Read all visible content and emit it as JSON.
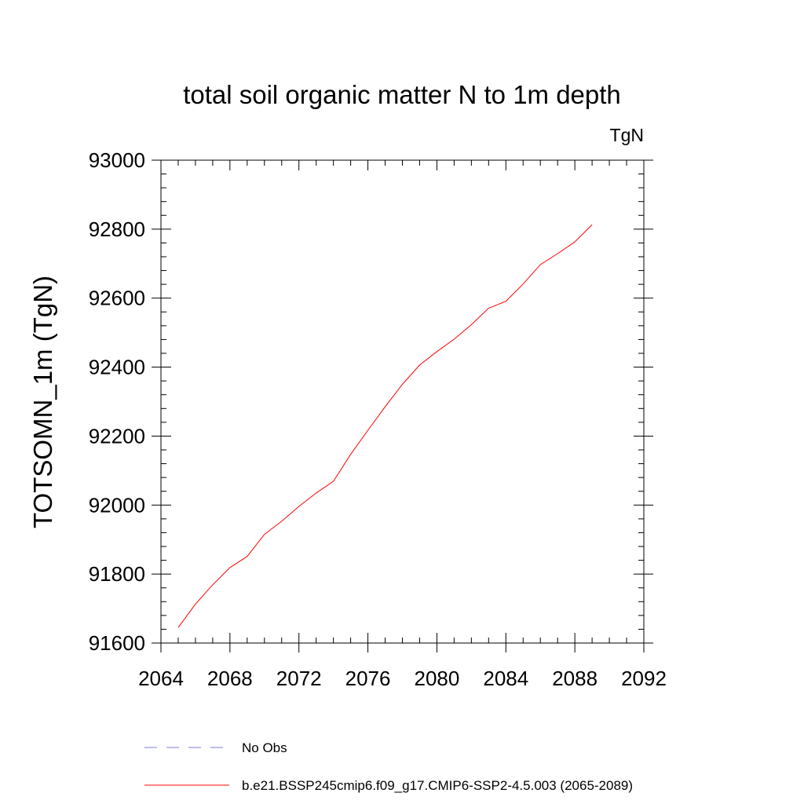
{
  "chart_data": {
    "type": "line",
    "title": "total soil organic matter N to 1m depth",
    "units": "TgN",
    "ylabel": "TOTSOMN_1m  (TgN)",
    "xlabel": "",
    "xlim": [
      2064,
      2092
    ],
    "ylim": [
      91600,
      93000
    ],
    "x_ticks": [
      "2064",
      "2068",
      "2072",
      "2076",
      "2080",
      "2084",
      "2088",
      "2092"
    ],
    "y_ticks": [
      "91600",
      "91800",
      "92000",
      "92200",
      "92400",
      "92600",
      "92800",
      "93000"
    ],
    "grid": false,
    "legend_position": "bottom",
    "series": [
      {
        "name": "b.e21.BSSP245cmip6.f09_g17.CMIP6-SSP2-4.5.003 (2065-2089)",
        "color": "#ff0000",
        "style": "solid",
        "x": [
          2065,
          2066,
          2067,
          2068,
          2069,
          2070,
          2071,
          2072,
          2073,
          2074,
          2075,
          2076,
          2077,
          2078,
          2079,
          2080,
          2081,
          2082,
          2083,
          2084,
          2085,
          2086,
          2087,
          2088,
          2089
        ],
        "y": [
          91645,
          91713,
          91769,
          91819,
          91851,
          91915,
          91953,
          91996,
          92035,
          92069,
          92147,
          92217,
          92285,
          92350,
          92406,
          92445,
          92481,
          92523,
          92571,
          92591,
          92641,
          92697,
          92729,
          92763,
          92813
        ]
      }
    ],
    "legend": [
      {
        "label": "No Obs",
        "color": "#7b7bd6",
        "style": "dashed"
      },
      {
        "label": "b.e21.BSSP245cmip6.f09_g17.CMIP6-SSP2-4.5.003 (2065-2089)",
        "color": "#ff0000",
        "style": "solid"
      }
    ]
  }
}
